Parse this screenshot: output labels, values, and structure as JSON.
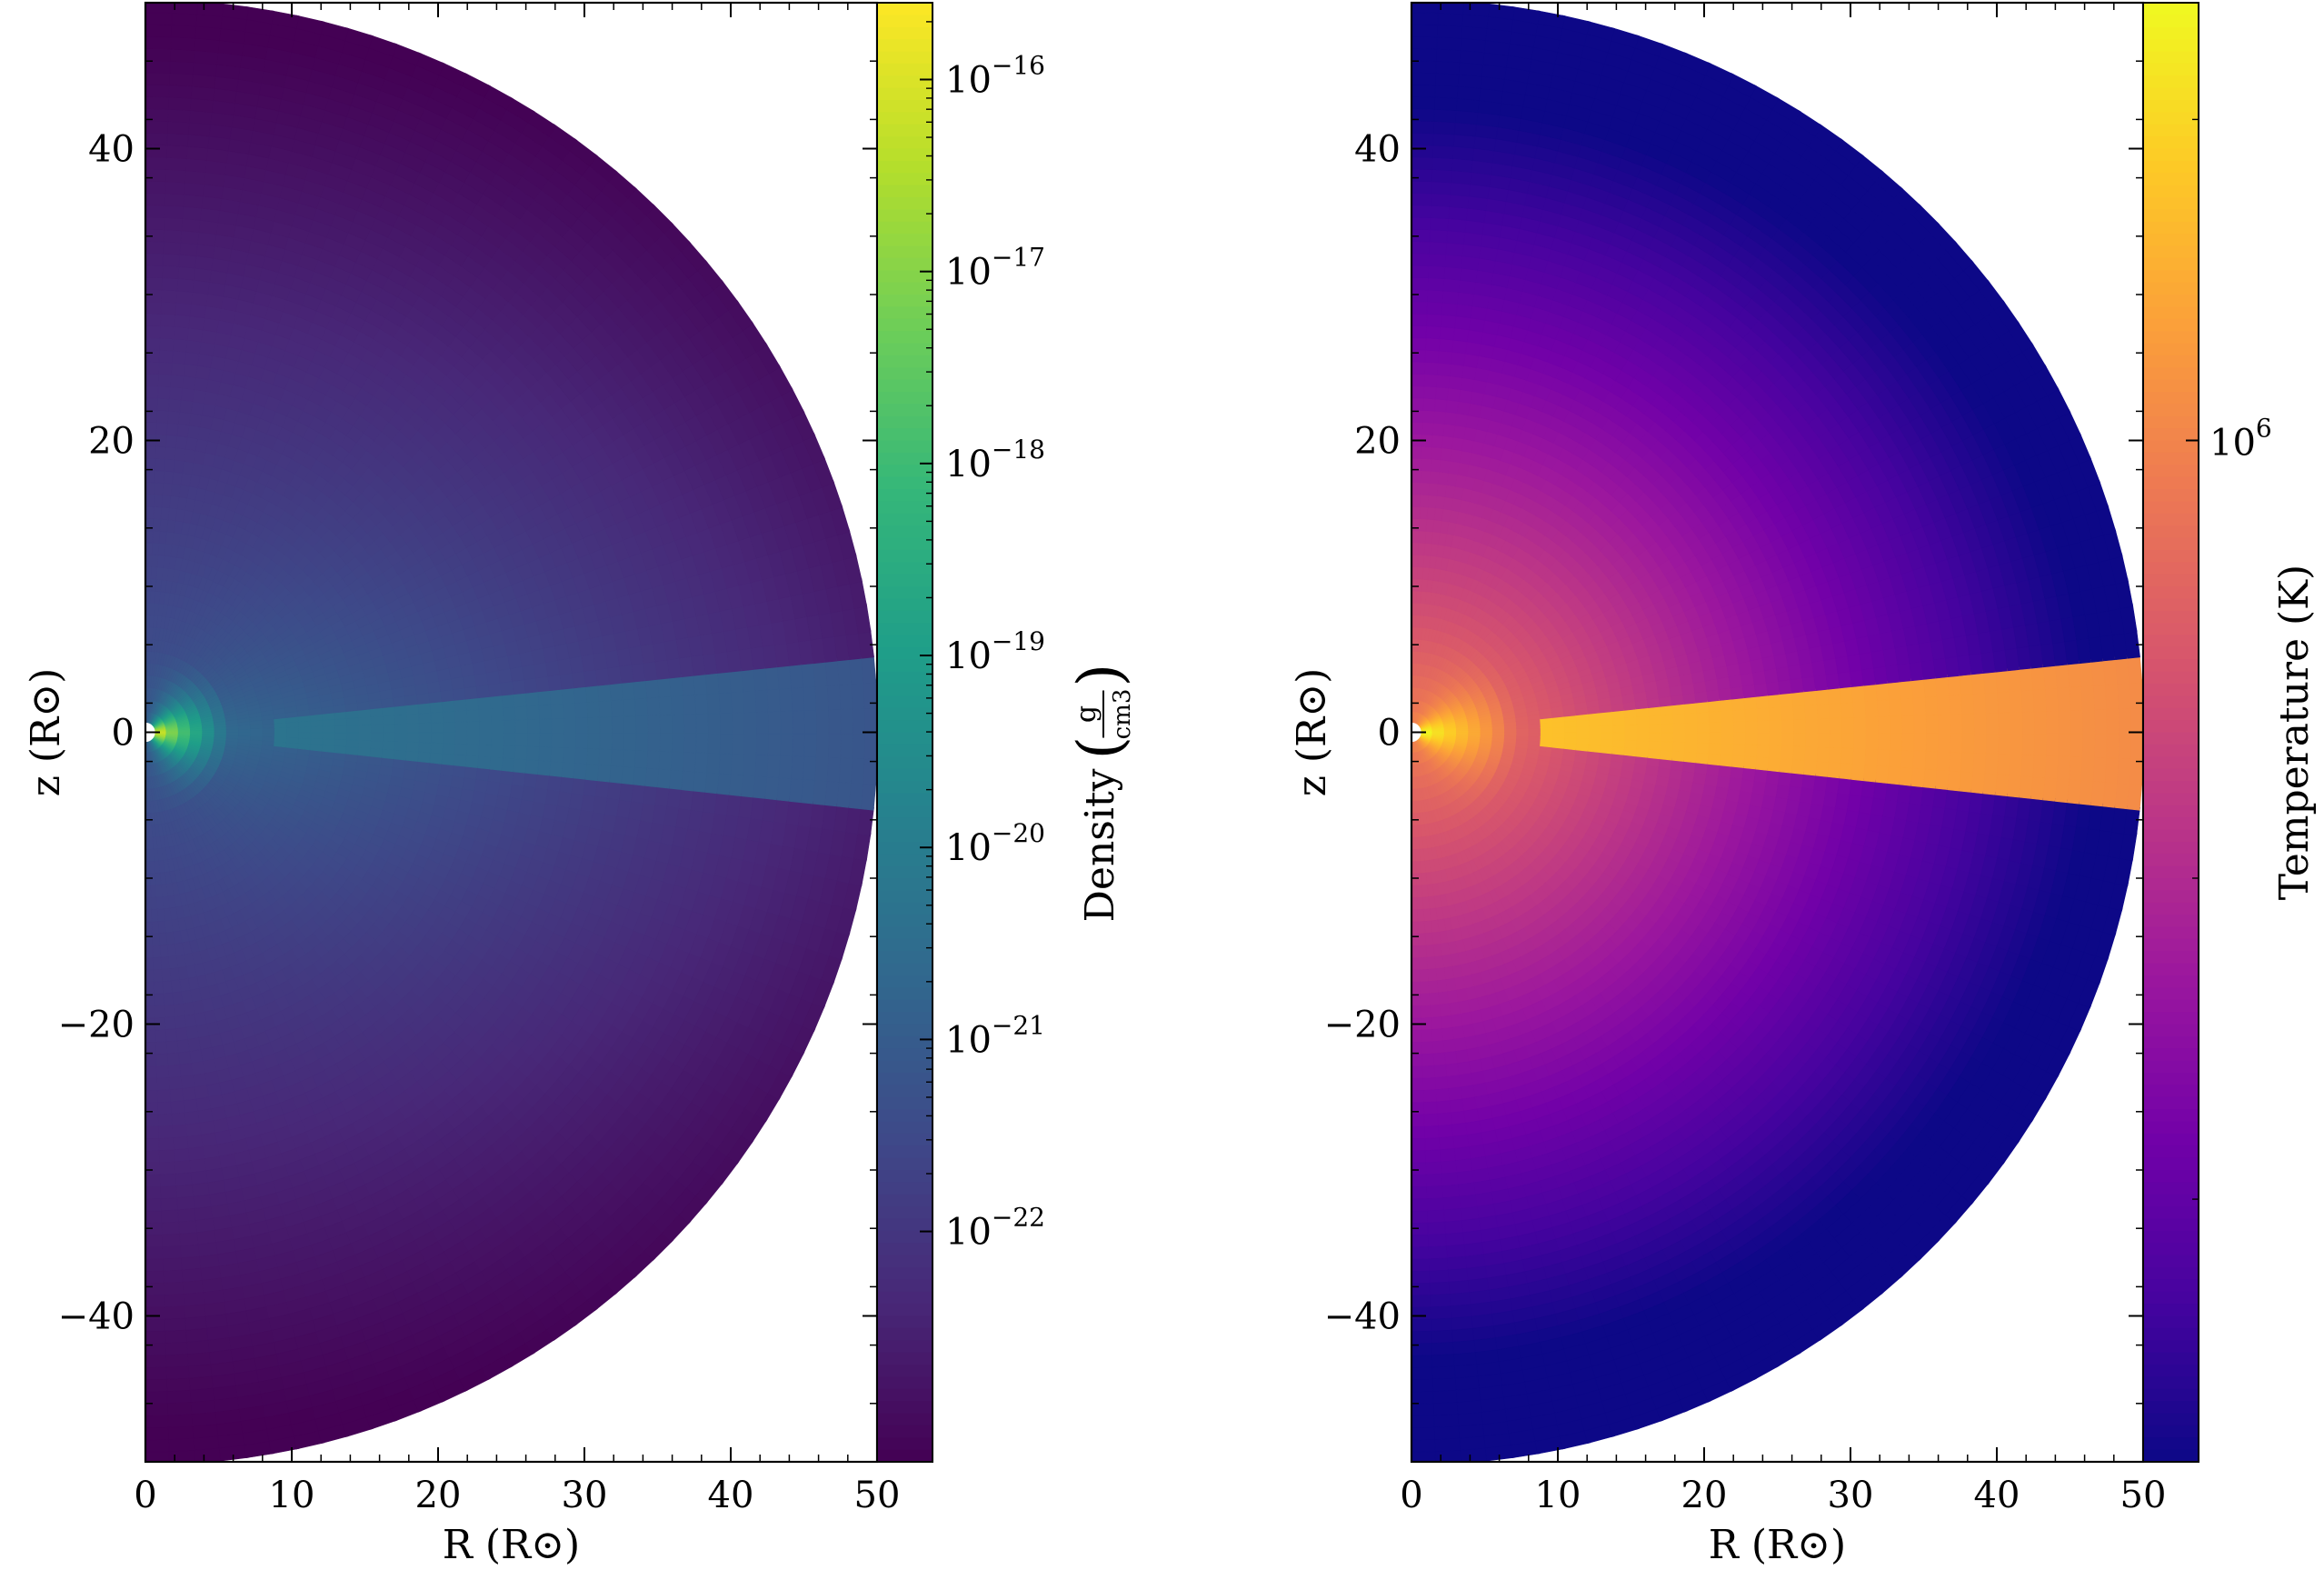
{
  "chart_data": [
    {
      "type": "heatmap",
      "name": "density",
      "xlabel": "R",
      "ylabel": "z",
      "axis_unit": "(R⊙)",
      "xlim": [
        0,
        50
      ],
      "ylim": [
        -50,
        50
      ],
      "xticks": [
        0,
        10,
        20,
        30,
        40,
        50
      ],
      "yticks": [
        -40,
        -20,
        0,
        20,
        40
      ],
      "domain_shape": "half-disk, radius 50 R⊙",
      "equatorial_wedge_half_angle_deg": 6,
      "colorbar": {
        "label": "Density",
        "unit_numerator": "g",
        "unit_denominator": "cm3",
        "scale": "log",
        "range_log10": [
          -23.2,
          -15.6
        ],
        "ticks_log10": [
          -16,
          -17,
          -18,
          -19,
          -20,
          -21,
          -22
        ],
        "tick_base": "10",
        "colormap": "viridis"
      }
    },
    {
      "type": "heatmap",
      "name": "temperature",
      "xlabel": "R",
      "ylabel": "z",
      "axis_unit": "(R⊙)",
      "xlim": [
        0,
        50
      ],
      "ylim": [
        -50,
        50
      ],
      "xticks": [
        0,
        10,
        20,
        30,
        40,
        50
      ],
      "yticks": [
        -40,
        -20,
        0,
        20,
        40
      ],
      "domain_shape": "half-disk, radius 50 R⊙",
      "equatorial_wedge_half_angle_deg": 6,
      "colorbar": {
        "label": "Temperature",
        "unit": "(K)",
        "scale": "log",
        "ticks": [
          "10",
          "6"
        ],
        "tick_value_K": 1000000,
        "colormap": "plasma"
      }
    }
  ],
  "colors": {
    "viridis": [
      "#440154",
      "#482878",
      "#3e4989",
      "#31688e",
      "#26828e",
      "#1f9e89",
      "#35b779",
      "#6ece58",
      "#b5de2b",
      "#fde725"
    ],
    "plasma": [
      "#0d0887",
      "#46039f",
      "#7201a8",
      "#9c179e",
      "#bd3786",
      "#d8576b",
      "#ed7953",
      "#fb9f3a",
      "#fdca26",
      "#f0f921"
    ]
  }
}
